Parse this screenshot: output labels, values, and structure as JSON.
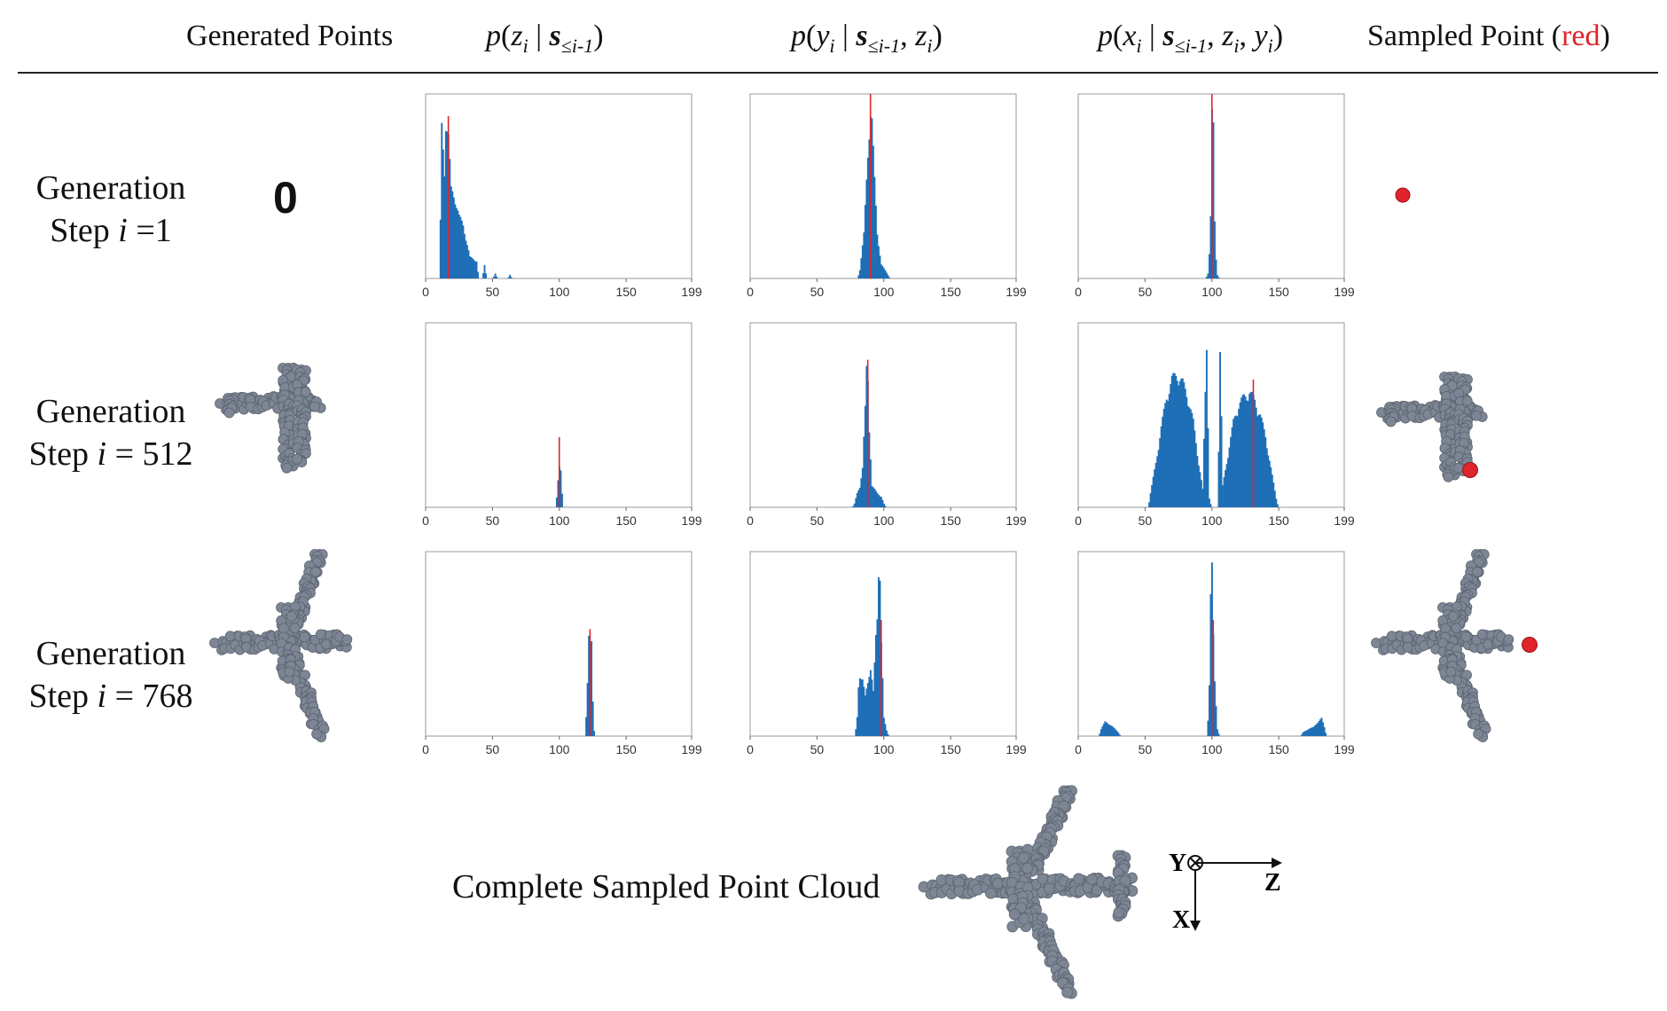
{
  "header": {
    "col1": "Generated Points",
    "col5_prefix": "Sampled Point (",
    "col5_red": "red",
    "col5_suffix": ")"
  },
  "rows": [
    {
      "line1": "Generation",
      "line2_prefix": "Step ",
      "line2_var": "i",
      "line2_suffix": " =1"
    },
    {
      "line1": "Generation",
      "line2_prefix": "Step ",
      "line2_var": "i",
      "line2_suffix": " = 512"
    },
    {
      "line1": "Generation",
      "line2_prefix": "Step ",
      "line2_var": "i",
      "line2_suffix": " = 768"
    }
  ],
  "zero_label": "0",
  "bottom": {
    "caption": "Complete Sampled Point Cloud",
    "axis_y": "Y",
    "axis_z": "Z",
    "axis_x": "X"
  },
  "colors": {
    "bar": "#1f6fb7",
    "sample": "#e0242b",
    "point": "#7d8694",
    "point_edge": "#5c6470"
  },
  "chart_data": [
    {
      "type": "bar",
      "row": 1,
      "column": "p(z_i | s_<=i-1)",
      "xlim": [
        0,
        199
      ],
      "xticks": [
        0,
        50,
        100,
        150,
        199
      ],
      "sampled_x": 17,
      "peaks": [
        [
          12,
          0.85
        ],
        [
          14,
          0.6
        ],
        [
          15,
          0.9
        ],
        [
          17,
          0.8
        ],
        [
          19,
          0.5
        ],
        [
          22,
          0.45
        ],
        [
          25,
          0.35
        ],
        [
          28,
          0.3
        ],
        [
          33,
          0.12
        ],
        [
          38,
          0.1
        ],
        [
          44,
          0.08
        ],
        [
          52,
          0.03
        ],
        [
          63,
          0.02
        ]
      ]
    },
    {
      "type": "bar",
      "row": 1,
      "column": "p(y_i | s_<=i-1, z_i)",
      "xlim": [
        0,
        199
      ],
      "xticks": [
        0,
        50,
        100,
        150,
        199
      ],
      "sampled_x": 90,
      "peaks": [
        [
          82,
          0.05
        ],
        [
          85,
          0.25
        ],
        [
          87,
          0.55
        ],
        [
          89,
          0.85
        ],
        [
          90,
          0.95
        ],
        [
          91,
          0.9
        ],
        [
          93,
          0.55
        ],
        [
          95,
          0.25
        ],
        [
          98,
          0.08
        ],
        [
          103,
          0.02
        ]
      ]
    },
    {
      "type": "bar",
      "row": 1,
      "column": "p(x_i | s_<=i-1, z_i, y_i)",
      "xlim": [
        0,
        199
      ],
      "xticks": [
        0,
        50,
        100,
        150,
        199
      ],
      "sampled_x": 100,
      "peaks": [
        [
          97,
          0.03
        ],
        [
          99,
          0.25
        ],
        [
          100,
          0.92
        ],
        [
          101,
          0.85
        ],
        [
          102,
          0.2
        ],
        [
          104,
          0.02
        ]
      ]
    },
    {
      "type": "bar",
      "row": 2,
      "column": "p(z_i | s_<=i-1)",
      "xlim": [
        0,
        199
      ],
      "xticks": [
        0,
        50,
        100,
        150,
        199
      ],
      "sampled_x": 100,
      "peaks": [
        [
          99,
          0.15
        ],
        [
          100,
          0.22
        ],
        [
          101,
          0.2
        ]
      ]
    },
    {
      "type": "bar",
      "row": 2,
      "column": "p(y_i | s_<=i-1, z_i)",
      "xlim": [
        0,
        199
      ],
      "xticks": [
        0,
        50,
        100,
        150,
        199
      ],
      "sampled_x": 88,
      "peaks": [
        [
          78,
          0.02
        ],
        [
          80,
          0.08
        ],
        [
          82,
          0.12
        ],
        [
          84,
          0.22
        ],
        [
          86,
          0.55
        ],
        [
          87,
          0.78
        ],
        [
          88,
          0.72
        ],
        [
          89,
          0.45
        ],
        [
          91,
          0.12
        ],
        [
          95,
          0.08
        ],
        [
          98,
          0.06
        ],
        [
          100,
          0.02
        ]
      ]
    },
    {
      "type": "bar",
      "row": 2,
      "column": "p(x_i | s_<=i-1, z_i, y_i)",
      "xlim": [
        0,
        199
      ],
      "xticks": [
        0,
        50,
        100,
        150,
        199
      ],
      "sampled_x": 131,
      "peaks": [
        [
          54,
          0.08
        ],
        [
          58,
          0.25
        ],
        [
          62,
          0.45
        ],
        [
          66,
          0.62
        ],
        [
          70,
          0.72
        ],
        [
          74,
          0.75
        ],
        [
          78,
          0.7
        ],
        [
          82,
          0.62
        ],
        [
          86,
          0.48
        ],
        [
          90,
          0.25
        ],
        [
          93,
          0.1
        ],
        [
          96,
          0.92
        ],
        [
          98,
          0.05
        ],
        [
          106,
          0.88
        ],
        [
          108,
          0.12
        ],
        [
          112,
          0.3
        ],
        [
          116,
          0.48
        ],
        [
          120,
          0.58
        ],
        [
          124,
          0.62
        ],
        [
          128,
          0.65
        ],
        [
          132,
          0.6
        ],
        [
          136,
          0.52
        ],
        [
          140,
          0.4
        ],
        [
          144,
          0.22
        ],
        [
          148,
          0.05
        ]
      ]
    },
    {
      "type": "bar",
      "row": 3,
      "column": "p(z_i | s_<=i-1)",
      "xlim": [
        0,
        199
      ],
      "xticks": [
        0,
        50,
        100,
        150,
        199
      ],
      "sampled_x": 123,
      "peaks": [
        [
          121,
          0.3
        ],
        [
          122,
          0.55
        ],
        [
          123,
          0.5
        ],
        [
          124,
          0.52
        ],
        [
          125,
          0.08
        ]
      ]
    },
    {
      "type": "bar",
      "row": 3,
      "column": "p(y_i | s_<=i-1, z_i)",
      "xlim": [
        0,
        199
      ],
      "xticks": [
        0,
        50,
        100,
        150,
        199
      ],
      "sampled_x": 98,
      "peaks": [
        [
          80,
          0.1
        ],
        [
          81,
          0.28
        ],
        [
          82,
          0.35
        ],
        [
          84,
          0.32
        ],
        [
          86,
          0.22
        ],
        [
          88,
          0.3
        ],
        [
          90,
          0.4
        ],
        [
          92,
          0.25
        ],
        [
          94,
          0.55
        ],
        [
          95,
          0.65
        ],
        [
          96,
          0.92
        ],
        [
          97,
          0.95
        ],
        [
          98,
          0.55
        ],
        [
          100,
          0.1
        ],
        [
          102,
          0.03
        ]
      ]
    },
    {
      "type": "bar",
      "row": 3,
      "column": "p(x_i | s_<=i-1, z_i, y_i)",
      "xlim": [
        0,
        199
      ],
      "xticks": [
        0,
        50,
        100,
        150,
        199
      ],
      "sampled_x": 101,
      "peaks": [
        [
          17,
          0.04
        ],
        [
          20,
          0.08
        ],
        [
          23,
          0.07
        ],
        [
          26,
          0.05
        ],
        [
          30,
          0.02
        ],
        [
          98,
          0.25
        ],
        [
          99,
          0.8
        ],
        [
          100,
          0.95
        ],
        [
          101,
          0.55
        ],
        [
          102,
          0.3
        ],
        [
          104,
          0.04
        ],
        [
          168,
          0.02
        ],
        [
          172,
          0.04
        ],
        [
          176,
          0.05
        ],
        [
          179,
          0.08
        ],
        [
          182,
          0.1
        ],
        [
          184,
          0.05
        ]
      ]
    }
  ]
}
